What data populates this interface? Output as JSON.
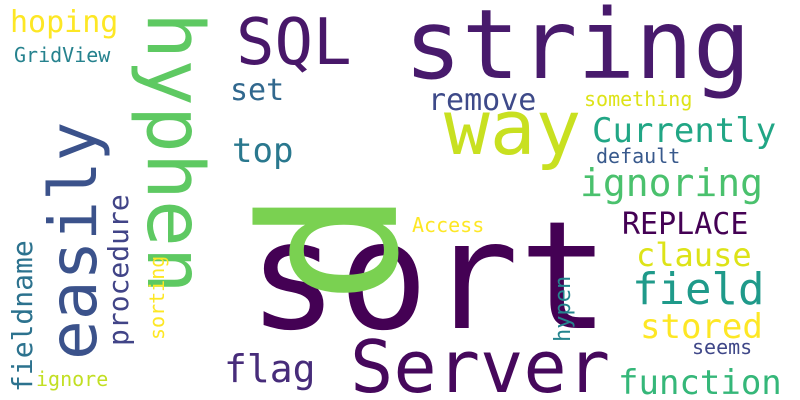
{
  "words": [
    {
      "text": "sort",
      "color": "#440154"
    },
    {
      "text": "p",
      "color": "#7ad151"
    },
    {
      "text": "string",
      "color": "#481a6c"
    },
    {
      "text": "hyphen",
      "color": "#5ec962"
    },
    {
      "text": "Server",
      "color": "#46085c"
    },
    {
      "text": "way",
      "color": "#c8e020"
    },
    {
      "text": "easily",
      "color": "#3b528b"
    },
    {
      "text": "SQL",
      "color": "#481769"
    },
    {
      "text": "REPLACE",
      "color": "#440154"
    },
    {
      "text": "ignoring",
      "color": "#4ac16d"
    },
    {
      "text": "Currently",
      "color": "#21a685"
    },
    {
      "text": "function",
      "color": "#35b779"
    },
    {
      "text": "field",
      "color": "#1f9a8a"
    },
    {
      "text": "flag",
      "color": "#472c7a"
    },
    {
      "text": "clause",
      "color": "#dde318"
    },
    {
      "text": "stored",
      "color": "#fde725"
    },
    {
      "text": "remove",
      "color": "#3e4a89"
    },
    {
      "text": "top",
      "color": "#2a788e"
    },
    {
      "text": "set",
      "color": "#31688e"
    },
    {
      "text": "procedure",
      "color": "#414487"
    },
    {
      "text": "fieldname",
      "color": "#2c728e"
    },
    {
      "text": "hoping",
      "color": "#fde725"
    },
    {
      "text": "GridView",
      "color": "#26828e"
    },
    {
      "text": "something",
      "color": "#dde318"
    },
    {
      "text": "default",
      "color": "#38598c"
    },
    {
      "text": "Access",
      "color": "#fde725"
    },
    {
      "text": "sorting",
      "color": "#fde725"
    },
    {
      "text": "hypen",
      "color": "#25848e"
    },
    {
      "text": "seems",
      "color": "#3f4788"
    },
    {
      "text": "ignore",
      "color": "#c2df23"
    }
  ]
}
